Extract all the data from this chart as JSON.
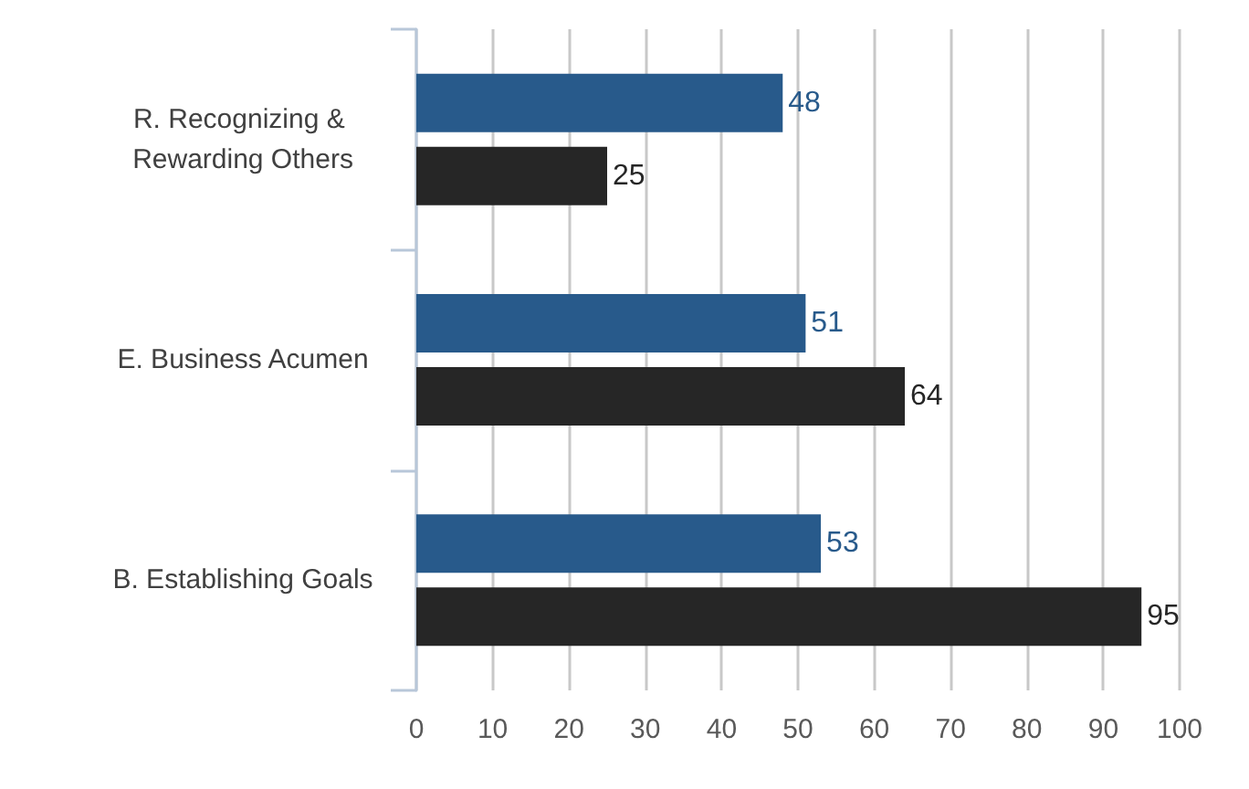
{
  "chart_data": {
    "type": "bar",
    "orientation": "horizontal",
    "categories": [
      "R. Recognizing & Rewarding Others",
      "E. Business Acumen",
      "B. Establishing Goals"
    ],
    "series": [
      {
        "color": "#285a8b",
        "values": [
          48,
          51,
          53
        ]
      },
      {
        "color": "#262626",
        "values": [
          25,
          64,
          95
        ]
      }
    ],
    "xlim": [
      0,
      100
    ],
    "xticks": [
      0,
      10,
      20,
      30,
      40,
      50,
      60,
      70,
      80,
      90,
      100
    ],
    "grid": "x",
    "data_labels": true
  }
}
